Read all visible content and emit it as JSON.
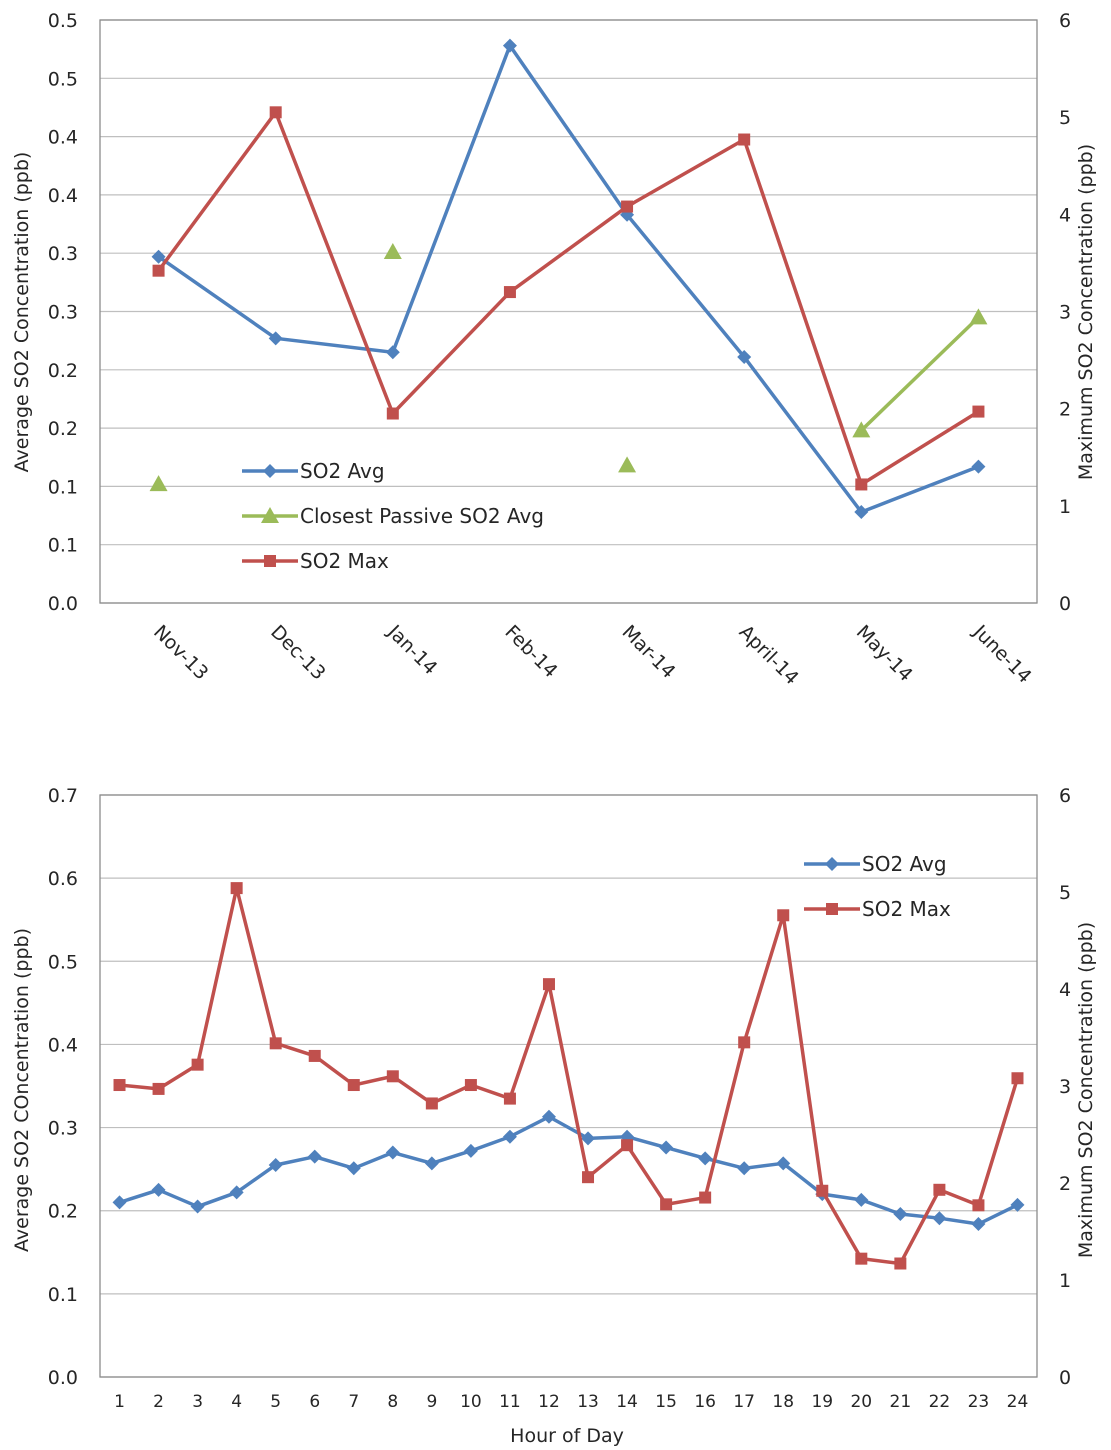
{
  "chart_data": [
    {
      "type": "line",
      "categories": [
        "Nov-13",
        "Dec-13",
        "Jan-14",
        "Feb-14",
        "Mar-14",
        "April-14",
        "May-14",
        "June-14"
      ],
      "y_left": {
        "label": "Average SO2 Concentration (ppb)",
        "tick_labels": [
          "0.0",
          "0.1",
          "0.1",
          "0.2",
          "0.2",
          "0.3",
          "0.3",
          "0.4",
          "0.4",
          "0.5",
          "0.5"
        ],
        "ylim": [
          0,
          0.5
        ]
      },
      "y_right": {
        "label": "Maximum SO2 Concentration (ppb)",
        "tick_labels": [
          "0",
          "1",
          "2",
          "3",
          "4",
          "5",
          "6"
        ],
        "ylim": [
          0,
          6
        ]
      },
      "series": [
        {
          "name": "SO2 Avg",
          "axis": "left",
          "marker": "diamond",
          "color": "#4F81BD",
          "values": [
            0.297,
            0.227,
            0.215,
            0.478,
            0.333,
            0.211,
            0.078,
            0.117
          ]
        },
        {
          "name": "Closest Passive SO2 Avg",
          "axis": "left",
          "marker": "triangle",
          "color": "#9BBB59",
          "values": [
            0.102,
            null,
            0.301,
            null,
            0.118,
            null,
            0.148,
            0.245
          ],
          "line_segments": [
            [
              6,
              7
            ]
          ]
        },
        {
          "name": "SO2 Max",
          "axis": "right",
          "marker": "square",
          "color": "#C0504D",
          "values": [
            3.42,
            5.05,
            1.95,
            3.2,
            4.08,
            4.77,
            1.22,
            1.97
          ]
        }
      ],
      "legend": {
        "position": "lower-left",
        "entries": [
          "SO2 Avg",
          "Closest Passive SO2 Avg",
          "SO2 Max"
        ]
      },
      "grid": true
    },
    {
      "type": "line",
      "categories": [
        "1",
        "2",
        "3",
        "4",
        "5",
        "6",
        "7",
        "8",
        "9",
        "10",
        "11",
        "12",
        "13",
        "14",
        "15",
        "16",
        "17",
        "18",
        "19",
        "20",
        "21",
        "22",
        "23",
        "24"
      ],
      "xlabel": "Hour of Day",
      "y_left": {
        "label": "Average SO2 COncentration (ppb)",
        "tick_labels": [
          "0.0",
          "0.1",
          "0.2",
          "0.3",
          "0.4",
          "0.5",
          "0.6",
          "0.7"
        ],
        "ylim": [
          0,
          0.7
        ]
      },
      "y_right": {
        "label": "Maximum SO2 Concentration (ppb)",
        "tick_labels": [
          "0",
          "1",
          "2",
          "3",
          "4",
          "5",
          "6"
        ],
        "ylim": [
          0,
          6
        ]
      },
      "series": [
        {
          "name": "SO2 Avg",
          "axis": "left",
          "marker": "diamond",
          "color": "#4F81BD",
          "values": [
            0.21,
            0.225,
            0.205,
            0.222,
            0.255,
            0.265,
            0.251,
            0.27,
            0.257,
            0.272,
            0.289,
            0.313,
            0.287,
            0.289,
            0.276,
            0.263,
            0.251,
            0.257,
            0.22,
            0.213,
            0.196,
            0.191,
            0.184,
            0.207
          ]
        },
        {
          "name": "SO2 Max",
          "axis": "right",
          "marker": "square",
          "color": "#C0504D",
          "values": [
            3.01,
            2.97,
            3.22,
            5.04,
            3.44,
            3.31,
            3.01,
            3.1,
            2.82,
            3.01,
            2.87,
            4.05,
            2.06,
            2.39,
            1.78,
            1.85,
            3.45,
            4.76,
            1.92,
            1.22,
            1.17,
            1.93,
            1.77,
            3.08
          ]
        }
      ],
      "legend": {
        "position": "top-right",
        "entries": [
          "SO2 Avg",
          "SO2 Max"
        ]
      },
      "grid": true
    }
  ]
}
